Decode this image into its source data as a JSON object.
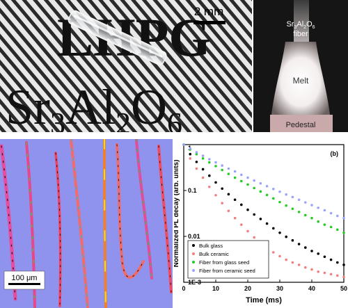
{
  "photo_left": {
    "line1": "LHPG",
    "line2_main": "Sr",
    "line2_sub1": "3",
    "line2_mid": "Al",
    "line2_sub2": "2",
    "line2_end": "O",
    "line2_sub3": "6",
    "scale_label": "2 mm"
  },
  "photo_right": {
    "fiber_label_main": "Sr",
    "fiber_label_sub1": "3",
    "fiber_label_mid": "Al",
    "fiber_label_sub2": "2",
    "fiber_label_end": "O",
    "fiber_label_sub3": "6",
    "fiber_word": "fiber",
    "melt_label": "Melt",
    "pedestal_label": "Pedestal"
  },
  "ebsd": {
    "scale_label": "100 μm"
  },
  "chart_data": {
    "type": "scatter",
    "panel_label": "(b)",
    "xlabel": "Time (ms)",
    "ylabel": "Normalized PL decay (arb. units)",
    "xlim": [
      0,
      50
    ],
    "ylim": [
      0.001,
      1
    ],
    "y_scale": "log",
    "x_ticks": [
      0,
      10,
      20,
      30,
      40,
      50
    ],
    "y_ticks": [
      {
        "value": 1,
        "label": "1"
      },
      {
        "value": 0.1,
        "label": "0.1"
      },
      {
        "value": 0.01,
        "label": "0.01"
      },
      {
        "value": 0.001,
        "label": "1E-3"
      }
    ],
    "legend_position": "bottom-left",
    "series": [
      {
        "name": "Bulk glass",
        "color": "#000000",
        "x": [
          0,
          2,
          4,
          6,
          8,
          10,
          12,
          14,
          16,
          18,
          20,
          22,
          24,
          26,
          28,
          30,
          32,
          34,
          36,
          38,
          40,
          42,
          44,
          46,
          48,
          50
        ],
        "y": [
          1.0,
          0.62,
          0.42,
          0.29,
          0.21,
          0.15,
          0.11,
          0.083,
          0.063,
          0.049,
          0.038,
          0.03,
          0.024,
          0.019,
          0.015,
          0.012,
          0.0098,
          0.0082,
          0.0068,
          0.0057,
          0.0048,
          0.0042,
          0.0036,
          0.0031,
          0.0027,
          0.0024
        ]
      },
      {
        "name": "Bulk ceramic",
        "color": "#f08080",
        "x": [
          0,
          2,
          4,
          6,
          8,
          10,
          12,
          14,
          16,
          18,
          20,
          22,
          24,
          26,
          28,
          30,
          32,
          34,
          36,
          38,
          40,
          42,
          44,
          46,
          48,
          50
        ],
        "y": [
          1.0,
          0.5,
          0.3,
          0.19,
          0.12,
          0.079,
          0.053,
          0.036,
          0.025,
          0.018,
          0.013,
          0.0095,
          0.0072,
          0.0056,
          0.0045,
          0.0037,
          0.0031,
          0.0027,
          0.0024,
          0.0021,
          0.0019,
          0.0017,
          0.0016,
          0.0015,
          0.0014,
          0.0013
        ]
      },
      {
        "name": "Fiber from glass seed",
        "color": "#22cc22",
        "x": [
          0,
          2,
          4,
          6,
          8,
          10,
          12,
          14,
          16,
          18,
          20,
          22,
          24,
          26,
          28,
          30,
          32,
          34,
          36,
          38,
          40,
          42,
          44,
          46,
          48,
          50
        ],
        "y": [
          1.0,
          0.78,
          0.62,
          0.5,
          0.41,
          0.34,
          0.28,
          0.23,
          0.19,
          0.16,
          0.135,
          0.113,
          0.095,
          0.08,
          0.067,
          0.056,
          0.047,
          0.04,
          0.034,
          0.029,
          0.025,
          0.021,
          0.018,
          0.016,
          0.014,
          0.012
        ]
      },
      {
        "name": "Fiber from ceramic seed",
        "color": "#9aa4ff",
        "x": [
          0,
          2,
          4,
          6,
          8,
          10,
          12,
          14,
          16,
          18,
          20,
          22,
          24,
          26,
          28,
          30,
          32,
          34,
          36,
          38,
          40,
          42,
          44,
          46,
          48,
          50
        ],
        "y": [
          1.0,
          0.82,
          0.68,
          0.57,
          0.48,
          0.41,
          0.35,
          0.3,
          0.26,
          0.22,
          0.19,
          0.165,
          0.143,
          0.124,
          0.108,
          0.094,
          0.082,
          0.072,
          0.063,
          0.055,
          0.048,
          0.042,
          0.037,
          0.032,
          0.028,
          0.025
        ]
      }
    ]
  }
}
